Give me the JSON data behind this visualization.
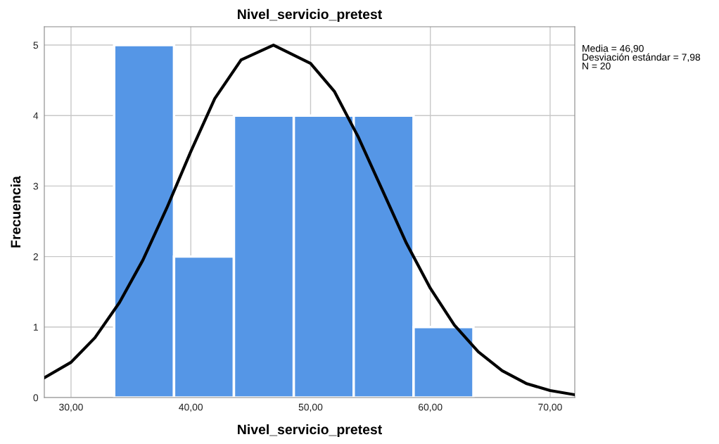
{
  "chart_data": {
    "type": "histogram",
    "title": "Nivel_servicio_pretest",
    "xlabel": "Nivel_servicio_pretest",
    "ylabel": "Frecuencia",
    "series": [
      {
        "type": "histogram",
        "color": "#5596e6",
        "bins": [
          33.6,
          38.6,
          43.6,
          48.6,
          53.6,
          58.6,
          63.6
        ],
        "values": [
          5,
          2,
          4,
          4,
          4,
          1
        ]
      },
      {
        "type": "line",
        "color": "#000000",
        "x": [
          27.77,
          30,
          32,
          34.05,
          36,
          38,
          40,
          42,
          44.2,
          46.9,
          50,
          52,
          54,
          56,
          58,
          60,
          62,
          64,
          66,
          68,
          70,
          72.06
        ],
        "values": [
          0.28,
          0.5,
          0.85,
          1.35,
          1.95,
          2.69,
          3.49,
          4.24,
          4.79,
          5.0,
          4.74,
          4.34,
          3.69,
          2.94,
          2.19,
          1.55,
          1.03,
          0.65,
          0.38,
          0.2,
          0.1,
          0.04
        ]
      }
    ],
    "xlim": [
      27.77,
      72.06
    ],
    "ylim": [
      0,
      5.26
    ],
    "xticks": [
      {
        "value": 30,
        "label": "30,00"
      },
      {
        "value": 40,
        "label": "40,00"
      },
      {
        "value": 50,
        "label": "50,00"
      },
      {
        "value": 60,
        "label": "60,00"
      },
      {
        "value": 70,
        "label": "70,00"
      }
    ],
    "yticks": [
      0,
      1,
      2,
      3,
      4,
      5
    ],
    "grid": true,
    "marker": "none",
    "line_style": "solid",
    "legend": false,
    "annotations": [
      "Media = 46,90",
      "Desviación estándar = 7,98",
      "N = 20"
    ]
  }
}
